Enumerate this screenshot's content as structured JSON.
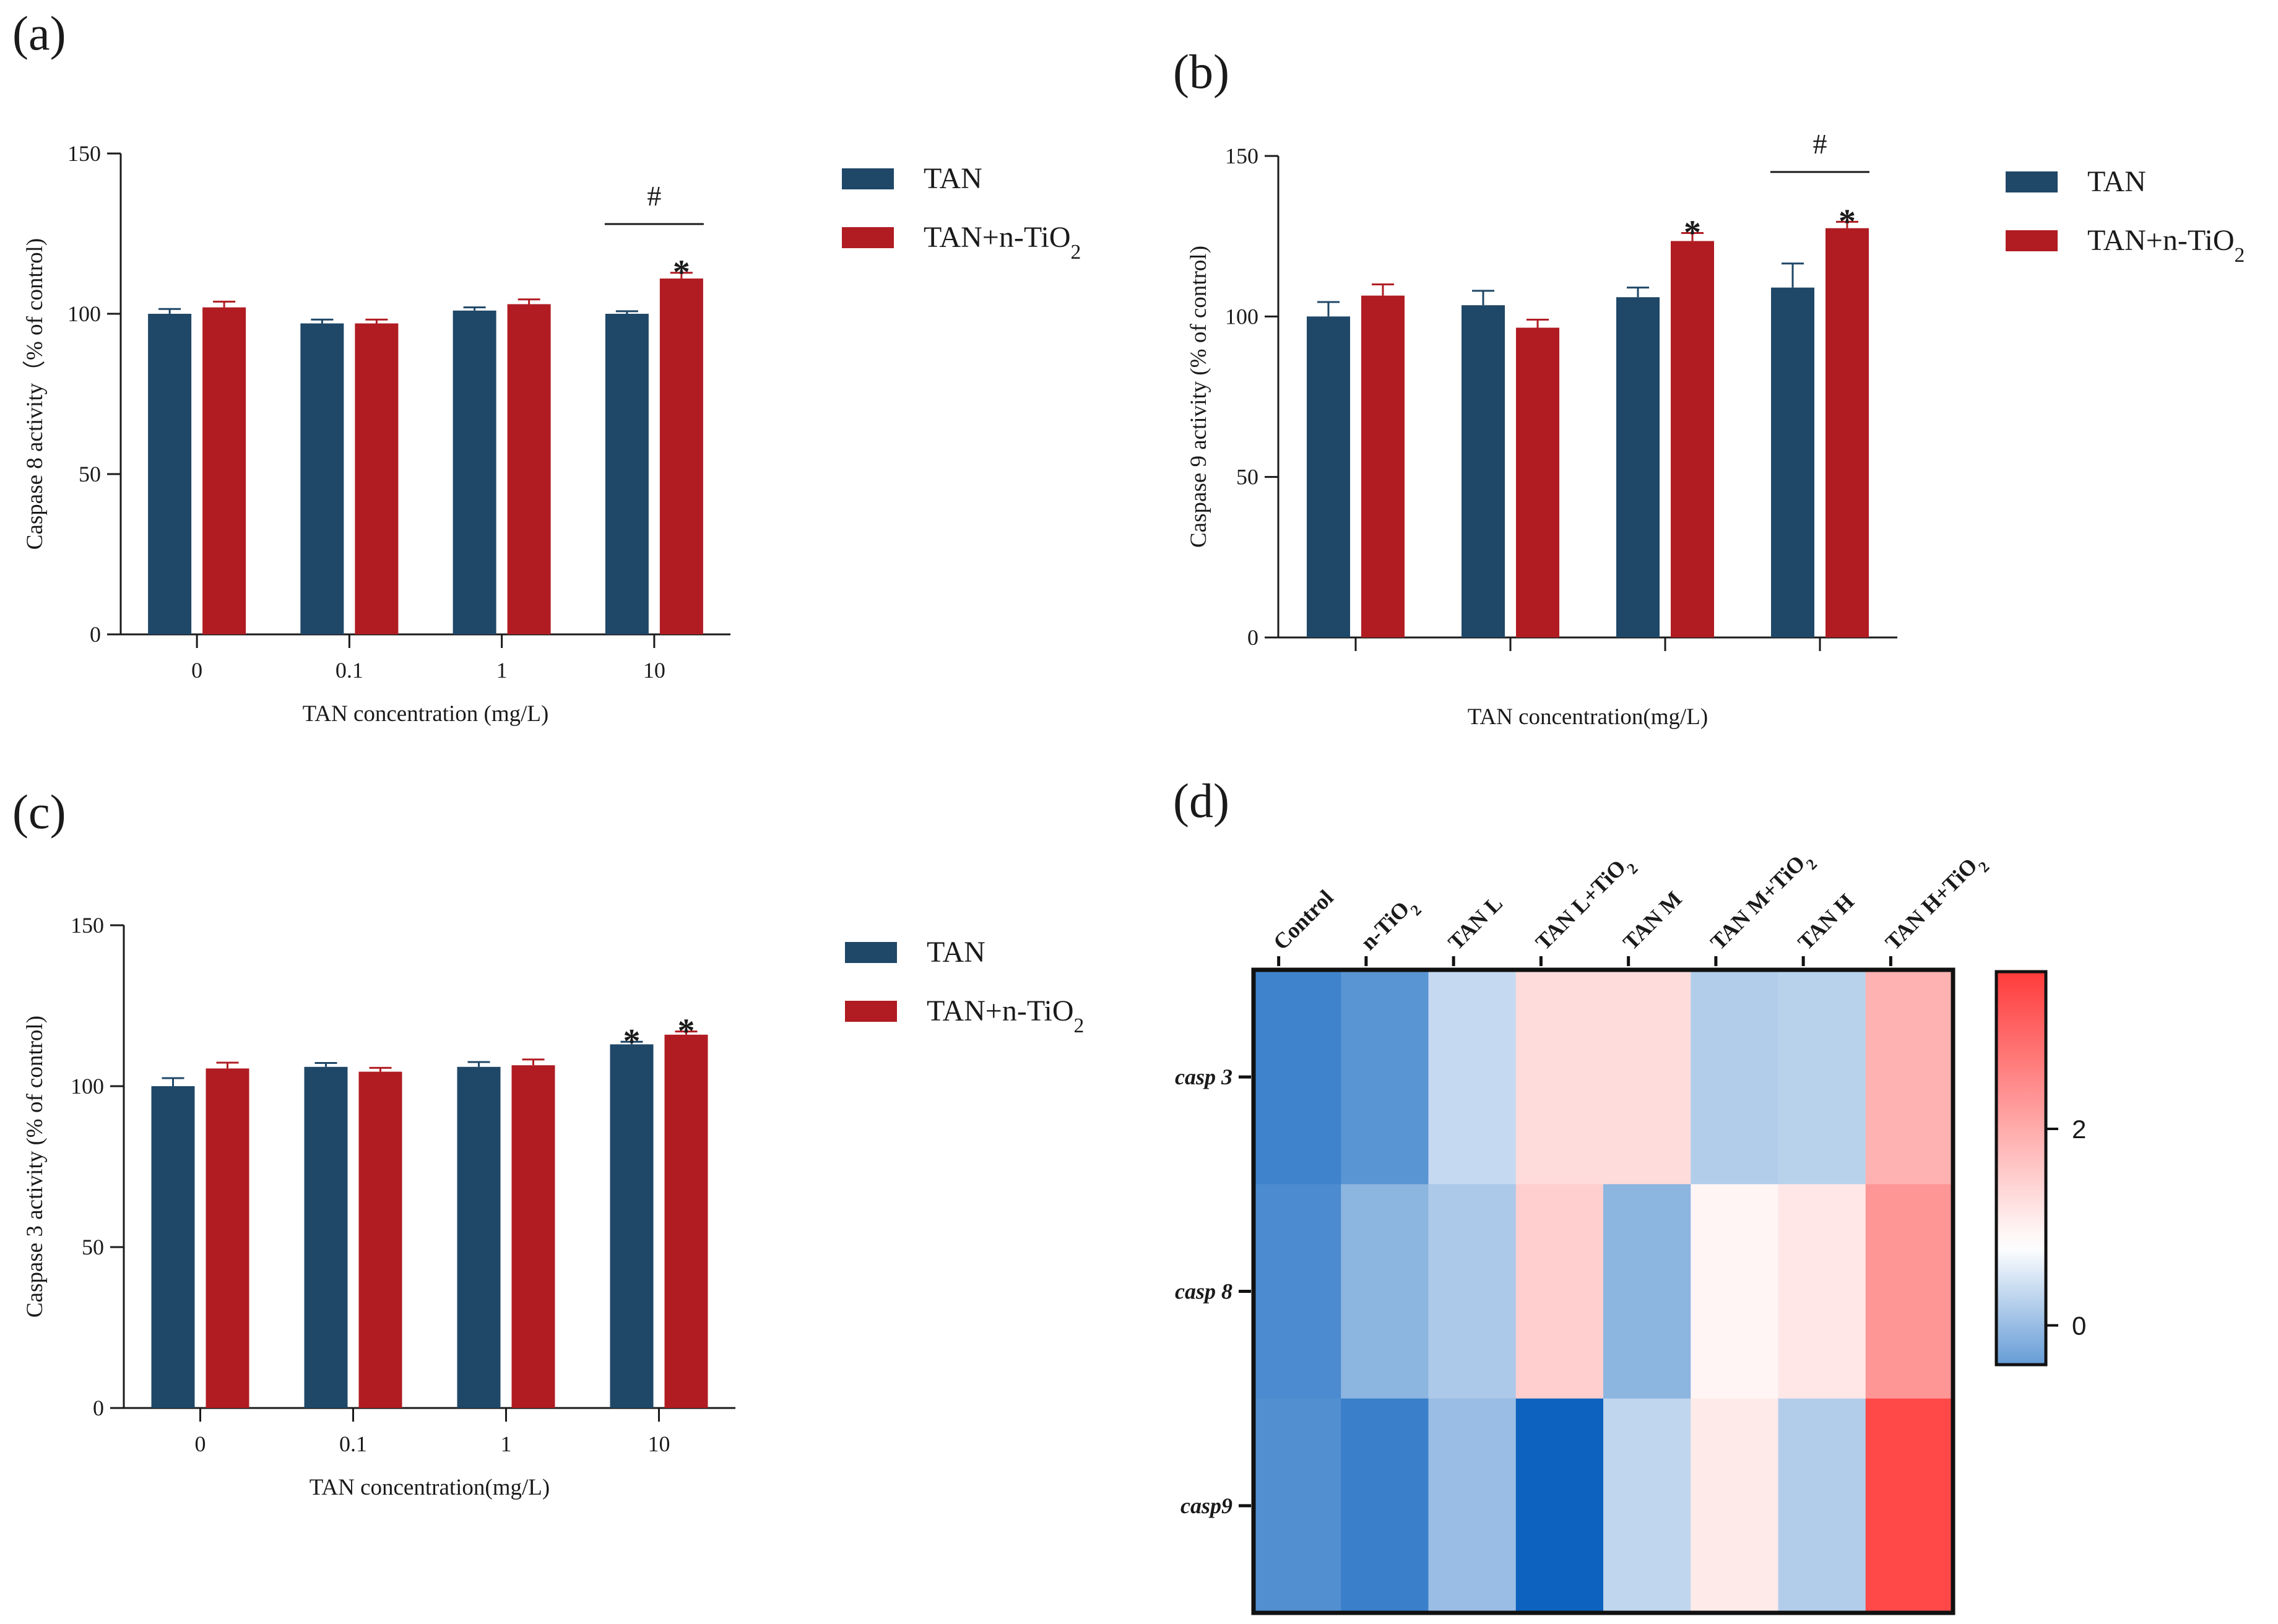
{
  "chart_data": [
    {
      "panel": "(a)",
      "type": "bar",
      "categories": [
        "0",
        "0.1",
        "1",
        "10"
      ],
      "xlabel": "TAN concentration (mg/L)",
      "ylabel": "Caspase 8 activity（% of control)",
      "ylim": [
        0,
        150
      ],
      "yticks": [
        "0",
        "50",
        "100",
        "150"
      ],
      "series": [
        {
          "name": "TAN",
          "color": "#1f4767",
          "values": [
            100,
            97,
            101,
            100
          ],
          "errors": [
            1.5,
            1.2,
            1.0,
            0.8
          ]
        },
        {
          "name": "TAN+n-TiO",
          "sub": "2",
          "color": "#b01c22",
          "values": [
            102,
            97,
            103,
            111
          ],
          "errors": [
            1.8,
            1.2,
            1.5,
            1.8
          ]
        }
      ],
      "annotations": [
        {
          "series": 1,
          "category": 3,
          "text": "*"
        },
        {
          "bracket": [
            3,
            3
          ],
          "level": 128,
          "text": "#"
        }
      ]
    },
    {
      "panel": "(b)",
      "type": "bar",
      "categories": [
        "",
        "",
        "",
        ""
      ],
      "xlabel": "TAN concentration(mg/L)",
      "ylabel": "Caspase 9 activity (% of control)",
      "ylim": [
        0,
        150
      ],
      "yticks": [
        "0",
        "50",
        "100",
        "150"
      ],
      "series": [
        {
          "name": "TAN",
          "color": "#1f4767",
          "values": [
            100,
            103.5,
            106,
            109
          ],
          "errors": [
            4.5,
            4.5,
            3.0,
            7.5
          ]
        },
        {
          "name": "TAN+n-TiO",
          "sub": "2",
          "color": "#b01c22",
          "values": [
            106.5,
            96.5,
            123.5,
            127.5
          ],
          "errors": [
            3.5,
            2.5,
            2.5,
            2.0
          ]
        }
      ],
      "annotations": [
        {
          "series": 1,
          "category": 2,
          "text": "*"
        },
        {
          "series": 1,
          "category": 3,
          "text": "*"
        },
        {
          "bracket": [
            3,
            3
          ],
          "level": 145,
          "text": "#"
        }
      ]
    },
    {
      "panel": "(c)",
      "type": "bar",
      "categories": [
        "0",
        "0.1",
        "1",
        "10"
      ],
      "xlabel": "TAN concentration(mg/L)",
      "ylabel": "Caspase 3 activity (% of control)",
      "ylim": [
        0,
        150
      ],
      "yticks": [
        "0",
        "50",
        "100",
        "150"
      ],
      "series": [
        {
          "name": "TAN",
          "color": "#1f4767",
          "values": [
            100,
            106,
            106,
            113
          ],
          "errors": [
            2.5,
            1.2,
            1.5,
            0.8
          ]
        },
        {
          "name": "TAN+n-TiO",
          "sub": "2",
          "color": "#b01c22",
          "values": [
            105.5,
            104.5,
            106.5,
            116
          ],
          "errors": [
            1.8,
            1.2,
            1.8,
            1.0
          ]
        }
      ],
      "annotations": [
        {
          "series": 0,
          "category": 3,
          "text": "*"
        },
        {
          "series": 1,
          "category": 3,
          "text": "*"
        }
      ]
    },
    {
      "panel": "(d)",
      "type": "heatmap",
      "columns": [
        {
          "label": "Control"
        },
        {
          "label": "n-TiO",
          "sub": "2"
        },
        {
          "label": "TAN L"
        },
        {
          "label": "TAN L+TiO",
          "sub": "2"
        },
        {
          "label": "TAN M"
        },
        {
          "label": "TAN M+TiO",
          "sub": "2"
        },
        {
          "label": "TAN H"
        },
        {
          "label": "TAN H+TiO",
          "sub": "2"
        }
      ],
      "rows": [
        "casp 3",
        "casp 8",
        "casp9"
      ],
      "values": [
        [
          -0.7,
          -0.5,
          0.35,
          1.3,
          1.3,
          0.2,
          0.25,
          1.9
        ],
        [
          -0.6,
          -0.1,
          0.15,
          1.5,
          -0.1,
          0.95,
          1.15,
          2.3
        ],
        [
          -0.55,
          -0.75,
          0.0,
          -1.1,
          0.3,
          1.1,
          0.2,
          3.4
        ]
      ],
      "colorbar": {
        "min": -0.4,
        "max": 3.6,
        "ticks": [
          "0",
          "2"
        ],
        "low_color": "#0c62be",
        "mid_color": "#ffffff",
        "high_color": "#ff3b3b"
      }
    }
  ]
}
